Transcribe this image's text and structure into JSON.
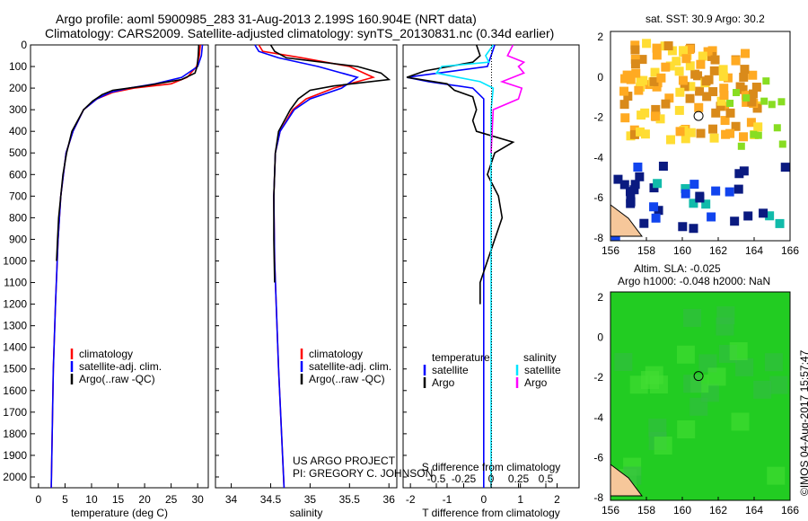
{
  "header": {
    "line1": "Argo profile: aoml 5900985_283 31-Aug-2013 2.199S 160.904E (NRT data)",
    "line2": "Climatology: CARS2009. Satellite-adjusted climatology: synTS_20130831.nc (0.34d earlier)"
  },
  "colors": {
    "climatology": "#ff0000",
    "satellite": "#0000ff",
    "argo": "#000000",
    "salinity_sat": "#00e5ff",
    "salinity_argo": "#ff00ff"
  },
  "chart_data": [
    {
      "type": "line",
      "name": "temperature",
      "xlabel": "temperature (deg C)",
      "ylabel": "depth",
      "xlim": [
        -1.5,
        32
      ],
      "ylim": [
        2050,
        0
      ],
      "xticks": [
        "0",
        "5",
        "10",
        "15",
        "20",
        "25",
        "30"
      ],
      "xtick_values": [
        0,
        5,
        10,
        15,
        20,
        25,
        30
      ],
      "yticks": [
        "0",
        "100",
        "200",
        "300",
        "400",
        "500",
        "600",
        "700",
        "800",
        "900",
        "1000",
        "1100",
        "1200",
        "1300",
        "1400",
        "1500",
        "1600",
        "1700",
        "1800",
        "1900",
        "2000"
      ],
      "legend": [
        "climatology",
        "satellite-adj. clim.",
        "Argo(..raw -QC)"
      ],
      "series": [
        {
          "name": "climatology",
          "depth": [
            0,
            50,
            100,
            150,
            180,
            200,
            220,
            250,
            300,
            400,
            500,
            700,
            900,
            1200,
            1500,
            2050
          ],
          "values": [
            30.5,
            30.3,
            29.8,
            28,
            25,
            18,
            14,
            11,
            8.5,
            6.5,
            5.2,
            4.2,
            3.7,
            3.2,
            2.8,
            2.4
          ]
        },
        {
          "name": "satellite-adj. clim.",
          "depth": [
            0,
            50,
            100,
            150,
            180,
            200,
            220,
            250,
            300,
            400,
            500,
            700,
            900,
            1200,
            1500,
            2050
          ],
          "values": [
            30.9,
            30.7,
            30,
            27,
            22,
            17,
            13.5,
            11,
            8.5,
            6.5,
            5.2,
            4.2,
            3.7,
            3.2,
            2.8,
            2.4
          ]
        },
        {
          "name": "Argo",
          "depth": [
            0,
            50,
            100,
            130,
            160,
            190,
            210,
            230,
            260,
            300,
            400,
            500,
            600,
            700,
            800,
            900,
            1000
          ],
          "values": [
            30.2,
            30.1,
            29.9,
            29.5,
            27,
            20,
            14,
            12,
            10.2,
            8.5,
            6.3,
            5.3,
            4.6,
            4.2,
            3.8,
            3.6,
            3.4
          ]
        }
      ]
    },
    {
      "type": "line",
      "name": "salinity",
      "xlabel": "salinity",
      "xlim": [
        33.8,
        36.1
      ],
      "ylim": [
        2050,
        0
      ],
      "xticks": [
        "34",
        "34.5",
        "35",
        "35.5",
        "36"
      ],
      "xtick_values": [
        34,
        34.5,
        35,
        35.5,
        36
      ],
      "legend": [
        "climatology",
        "satellite-adj. clim.",
        "Argo(..raw -QC)"
      ],
      "annotation": [
        "US ARGO PROJECT",
        "PI: GREGORY C. JOHNSON"
      ],
      "series": [
        {
          "name": "climatology",
          "depth": [
            0,
            30,
            60,
            100,
            150,
            200,
            250,
            300,
            400,
            500,
            700,
            1000,
            1500,
            2050
          ],
          "values": [
            34.35,
            34.4,
            34.9,
            35.5,
            35.8,
            35.3,
            34.95,
            34.78,
            34.62,
            34.56,
            34.54,
            34.55,
            34.6,
            34.67
          ]
        },
        {
          "name": "satellite-adj. clim.",
          "depth": [
            0,
            30,
            60,
            100,
            150,
            200,
            250,
            300,
            400,
            500,
            700,
            1000,
            1500,
            2050
          ],
          "values": [
            34.3,
            34.35,
            34.6,
            35.1,
            35.6,
            35.4,
            35.0,
            34.8,
            34.62,
            34.56,
            34.54,
            34.55,
            34.6,
            34.67
          ]
        },
        {
          "name": "Argo",
          "depth": [
            0,
            30,
            60,
            100,
            130,
            160,
            190,
            210,
            250,
            300,
            400,
            500,
            700,
            900,
            1100
          ],
          "values": [
            34.5,
            34.55,
            34.7,
            35.6,
            35.9,
            36.0,
            35.3,
            35.0,
            34.85,
            34.75,
            34.6,
            34.56,
            34.54,
            34.54,
            34.55
          ]
        }
      ]
    },
    {
      "type": "line",
      "name": "difference",
      "xlabel": "T difference from climatology",
      "xlabel2": "S difference from climatology",
      "xticks": [
        "-2",
        "-1",
        "0",
        "1",
        "2"
      ],
      "xtick_values": [
        -2,
        -1,
        0,
        1,
        2
      ],
      "xlim": [
        -2.2,
        2.6
      ],
      "xticks2": [
        "-0.5",
        "-0.25",
        "0",
        "0.25",
        "0.5"
      ],
      "xtick2_values": [
        -0.5,
        -0.25,
        0,
        0.25,
        0.5
      ],
      "legend_headers": [
        "temperature",
        "salinity"
      ],
      "legend": [
        "satellite",
        "Argo",
        "satellite",
        "Argo"
      ],
      "series": [
        {
          "name": "T satellite",
          "depth": [
            0,
            50,
            100,
            150,
            170,
            200,
            250,
            300,
            400,
            2050
          ],
          "values": [
            0.3,
            0.2,
            0.1,
            -2.1,
            -1.5,
            -0.3,
            0,
            0,
            0,
            0
          ]
        },
        {
          "name": "T Argo",
          "depth": [
            0,
            50,
            80,
            120,
            150,
            180,
            210,
            240,
            300,
            350,
            400,
            450,
            500,
            600,
            700,
            800,
            900,
            1000,
            1100,
            1200
          ],
          "values": [
            -0.2,
            -0.1,
            -0.3,
            -1.6,
            -2.1,
            -1,
            -0.8,
            -0.3,
            -0.2,
            -0.3,
            -0.2,
            0.8,
            0.3,
            0.1,
            0.4,
            0.5,
            0.3,
            0.1,
            -0.1,
            -0.1
          ]
        },
        {
          "name": "S satellite",
          "depth": [
            0,
            50,
            80,
            100,
            130,
            170,
            200,
            250,
            300,
            2050
          ],
          "values": [
            0.02,
            -0.05,
            -0.02,
            -0.45,
            -0.5,
            -0.1,
            0.02,
            0.01,
            0,
            0
          ]
        },
        {
          "name": "S Argo",
          "depth": [
            0,
            50,
            80,
            100,
            130,
            170,
            200,
            250,
            300,
            400,
            500
          ],
          "values": [
            0.2,
            0.15,
            0.3,
            0.25,
            0.3,
            0.1,
            0.28,
            0.25,
            0.02,
            0.01,
            0
          ]
        }
      ]
    }
  ],
  "maps": {
    "sst": {
      "title": "sat. SST: 30.9 Argo: 30.2",
      "yticks": [
        "2",
        "0",
        "-2",
        "-4",
        "-6",
        "-8"
      ],
      "xticks": [
        "156",
        "158",
        "160",
        "162",
        "164",
        "166"
      ]
    },
    "sla": {
      "title1": "Altim. SLA: -0.025",
      "title2": "Argo h1000: -0.048 h2000: NaN",
      "yticks": [
        "2",
        "0",
        "-2",
        "-4",
        "-6",
        "-8"
      ],
      "xticks": [
        "156",
        "158",
        "160",
        "162",
        "164",
        "166"
      ]
    },
    "credit": "©IMOS 04-Aug-2017 15:57:47"
  }
}
